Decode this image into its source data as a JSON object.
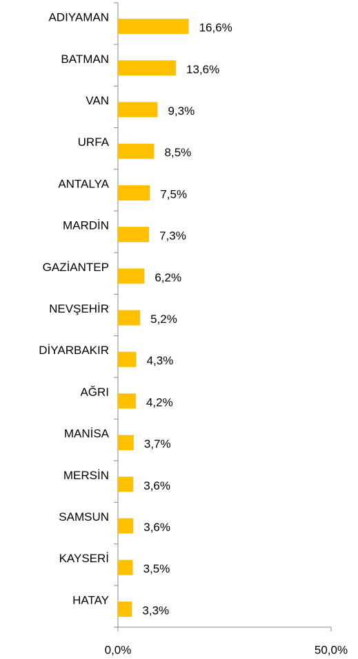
{
  "chart_data": {
    "type": "barh",
    "categories": [
      "ADIYAMAN",
      "BATMAN",
      "VAN",
      "URFA",
      "ANTALYA",
      "MARDİN",
      "GAZİANTEP",
      "NEVŞEHİR",
      "DİYARBAKIR",
      "AĞRI",
      "MANİSA",
      "MERSİN",
      "SAMSUN",
      "KAYSERİ",
      "HATAY"
    ],
    "values": [
      16.6,
      13.6,
      9.3,
      8.5,
      7.5,
      7.3,
      6.2,
      5.2,
      4.3,
      4.2,
      3.7,
      3.6,
      3.6,
      3.5,
      3.3
    ],
    "value_labels": [
      "16,6%",
      "13,6%",
      "9,3%",
      "8,5%",
      "7,5%",
      "7,3%",
      "6,2%",
      "5,2%",
      "4,3%",
      "4,2%",
      "3,7%",
      "3,6%",
      "3,6%",
      "3,5%",
      "3,3%"
    ],
    "color": "#ffc000",
    "xlim": [
      0,
      50
    ],
    "xticks": [
      {
        "value": 0,
        "label": "0,0%"
      },
      {
        "value": 50,
        "label": "50,0%"
      }
    ],
    "grid": false
  }
}
